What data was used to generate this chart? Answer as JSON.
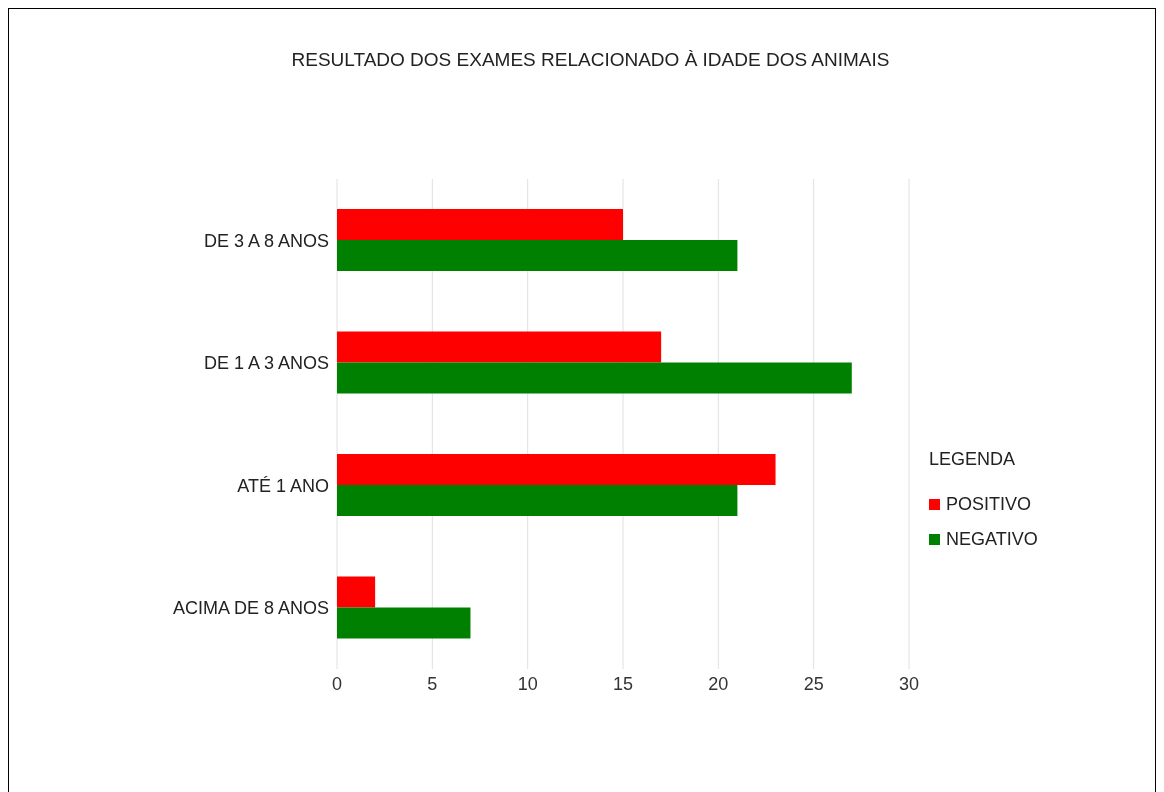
{
  "chart_data": {
    "type": "bar",
    "orientation": "horizontal",
    "title": "RESULTADO DOS EXAMES RELACIONADO À IDADE DOS ANIMAIS",
    "categories": [
      "DE 3 A 8 ANOS",
      "DE 1 A 3 ANOS",
      "ATÉ 1 ANO",
      "ACIMA DE 8 ANOS"
    ],
    "series": [
      {
        "name": "POSITIVO",
        "color": "#ff0000",
        "values": [
          15,
          17,
          23,
          2
        ]
      },
      {
        "name": "NEGATIVO",
        "color": "#008000",
        "values": [
          21,
          27,
          21,
          7
        ]
      }
    ],
    "xlim": [
      0,
      30
    ],
    "xticks": [
      0,
      5,
      10,
      15,
      20,
      25,
      30
    ],
    "grid": "x",
    "legend": "right",
    "legend_title": "LEGENDA"
  }
}
